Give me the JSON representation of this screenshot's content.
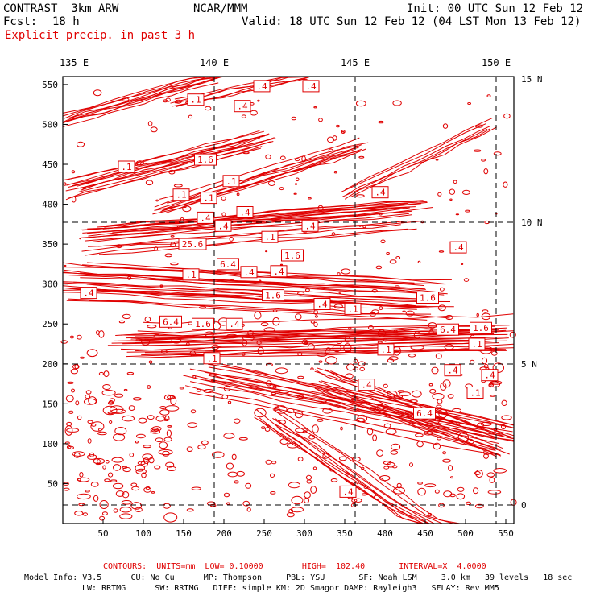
{
  "header": {
    "model": "CONTRAST  3km ARW",
    "center": "NCAR/MMM",
    "init": "Init: 00 UTC Sun 12 Feb 12",
    "fcst_label": "Fcst:",
    "fcst_value": "18 h",
    "valid": "Valid: 18 UTC Sun 12 Feb 12 (04 LST Mon 13 Feb 12)",
    "field": "Explicit precip. in past 3 h"
  },
  "map": {
    "lon_labels": [
      "135 E",
      "140 E",
      "145 E",
      "150 E"
    ],
    "lat_labels": [
      "15 N",
      "10 N",
      "5 N",
      "0"
    ],
    "y_ticks": [
      "550",
      "500",
      "450",
      "400",
      "350",
      "300",
      "250",
      "200",
      "150",
      "100",
      "50"
    ],
    "x_ticks": [
      "50",
      "100",
      "150",
      "200",
      "250",
      "300",
      "350",
      "400",
      "450",
      "500",
      "550"
    ],
    "contour_color": "#e00000",
    "contour_labels": [
      {
        "text": ".4",
        "x": 247,
        "y": 548
      },
      {
        "text": ".4",
        "x": 308,
        "y": 548
      },
      {
        "text": ".1",
        "x": 165,
        "y": 531
      },
      {
        "text": ".4",
        "x": 223,
        "y": 523
      },
      {
        "text": "1.6",
        "x": 177,
        "y": 456
      },
      {
        "text": ".1",
        "x": 79,
        "y": 447
      },
      {
        "text": ".1",
        "x": 209,
        "y": 429
      },
      {
        "text": ".4",
        "x": 394,
        "y": 415
      },
      {
        "text": ".1",
        "x": 147,
        "y": 412
      },
      {
        "text": ".1",
        "x": 181,
        "y": 408
      },
      {
        "text": ".4",
        "x": 226,
        "y": 390
      },
      {
        "text": ".4",
        "x": 177,
        "y": 383
      },
      {
        "text": ".4",
        "x": 199,
        "y": 373
      },
      {
        "text": ".4",
        "x": 307,
        "y": 373
      },
      {
        "text": ".1",
        "x": 257,
        "y": 359
      },
      {
        "text": "25.6",
        "x": 161,
        "y": 350
      },
      {
        "text": ".4",
        "x": 491,
        "y": 346
      },
      {
        "text": "1.6",
        "x": 285,
        "y": 336
      },
      {
        "text": "6.4",
        "x": 205,
        "y": 325
      },
      {
        "text": ".4",
        "x": 231,
        "y": 315
      },
      {
        "text": ".4",
        "x": 268,
        "y": 316
      },
      {
        "text": ".1",
        "x": 159,
        "y": 312
      },
      {
        "text": "1.6",
        "x": 261,
        "y": 286
      },
      {
        "text": "1.6",
        "x": 453,
        "y": 283
      },
      {
        "text": ".4",
        "x": 32,
        "y": 289
      },
      {
        "text": ".4",
        "x": 322,
        "y": 275
      },
      {
        "text": ".1",
        "x": 360,
        "y": 269
      },
      {
        "text": "6.4",
        "x": 134,
        "y": 253
      },
      {
        "text": "1.6",
        "x": 174,
        "y": 250
      },
      {
        "text": ".4",
        "x": 213,
        "y": 250
      },
      {
        "text": "6.4",
        "x": 478,
        "y": 243
      },
      {
        "text": "1.6",
        "x": 519,
        "y": 245
      },
      {
        "text": ".1",
        "x": 514,
        "y": 225
      },
      {
        "text": ".1",
        "x": 401,
        "y": 218
      },
      {
        "text": ".1",
        "x": 185,
        "y": 207
      },
      {
        "text": ".4",
        "x": 484,
        "y": 192
      },
      {
        "text": ".4",
        "x": 530,
        "y": 186
      },
      {
        "text": ".4",
        "x": 377,
        "y": 174
      },
      {
        "text": ".1",
        "x": 512,
        "y": 164
      },
      {
        "text": "6.4",
        "x": 449,
        "y": 138
      },
      {
        "text": ".4",
        "x": 354,
        "y": 40
      }
    ]
  },
  "footer": {
    "contours": "CONTOURS:  UNITS=mm  LOW= 0.10000        HIGH=  102.40       INTERVAL=X  4.0000",
    "model_info_1": "Model Info: V3.5      CU: No Cu      MP: Thompson     PBL: YSU       SF: Noah LSM     3.0 km   39 levels   18 sec",
    "model_info_2": "LW: RRTMG      SW: RRTMG   DIFF: simple KM: 2D Smagor DAMP: Rayleigh3   SFLAY: Rev MM5"
  }
}
